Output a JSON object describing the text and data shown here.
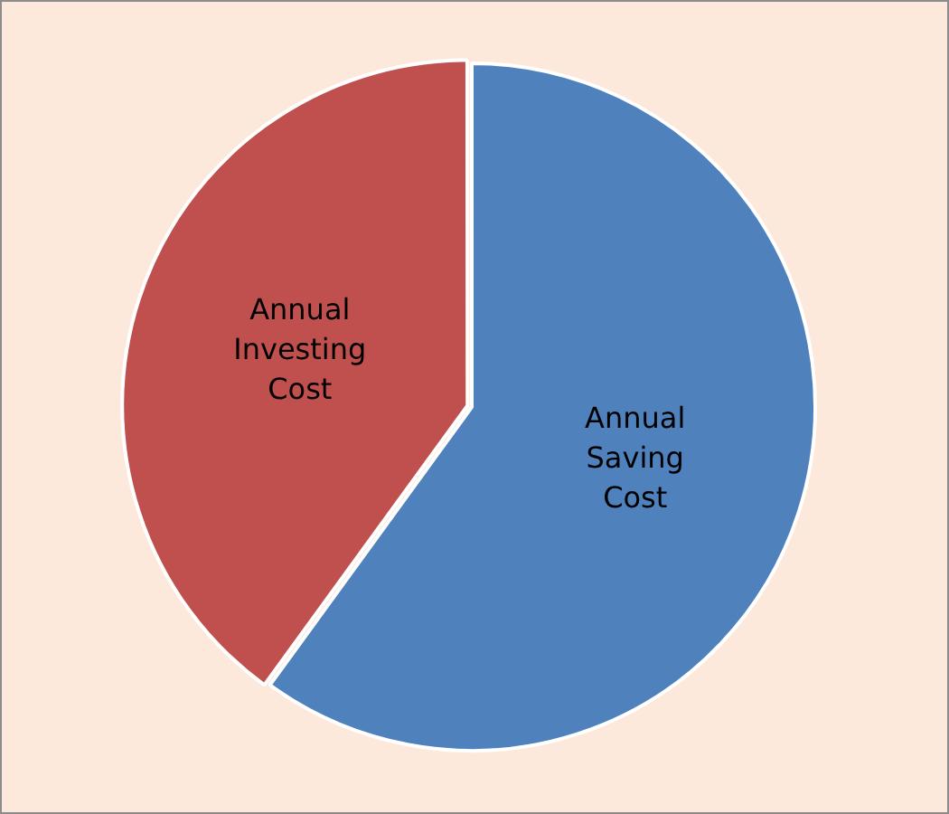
{
  "chart_data": {
    "type": "pie",
    "categories": [
      "Annual Saving Cost",
      "Annual Investing Cost"
    ],
    "values": [
      60,
      40
    ],
    "colors": [
      "#4f81bd",
      "#c0504d"
    ]
  }
}
